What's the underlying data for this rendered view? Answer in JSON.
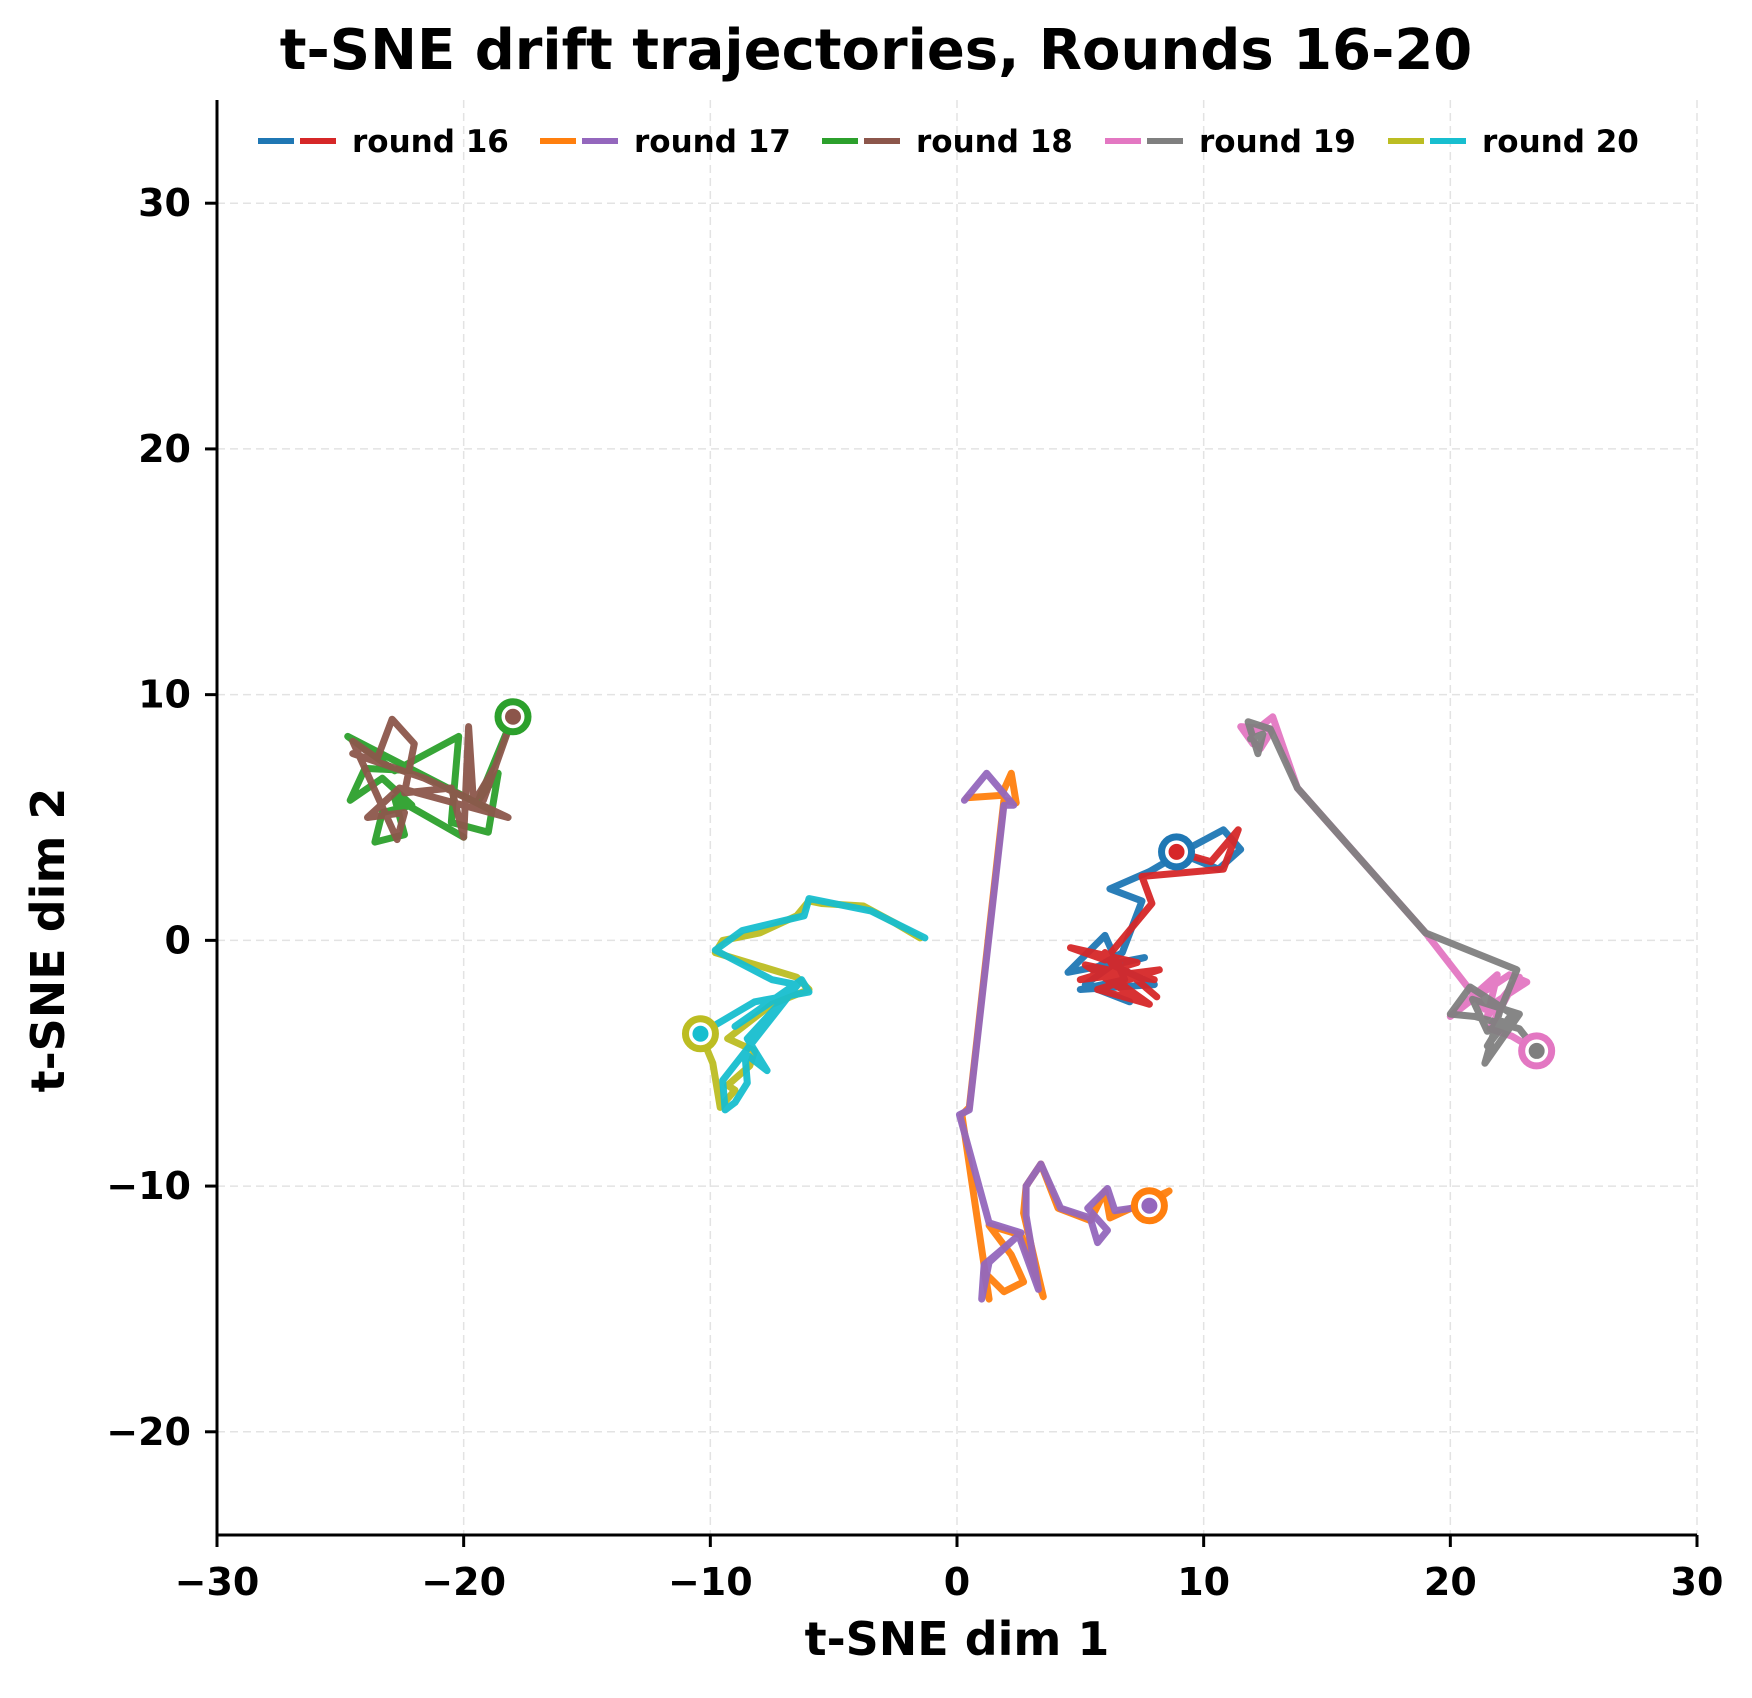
{
  "chart_data": {
    "type": "line",
    "title": "t-SNE drift trajectories, Rounds 16-20",
    "xlabel": "t-SNE dim 1",
    "ylabel": "t-SNE dim 2",
    "xlim": [
      -30,
      30
    ],
    "ylim": [
      -24.2,
      34.2
    ],
    "xticks": [
      -30,
      -20,
      -10,
      0,
      10,
      20,
      30
    ],
    "yticks": [
      -20,
      -10,
      0,
      10,
      20,
      30
    ],
    "xtick_labels": [
      "−30",
      "−20",
      "−10",
      "0",
      "10",
      "20",
      "30"
    ],
    "ytick_labels": [
      "−20",
      "−10",
      "0",
      "10",
      "20",
      "30"
    ],
    "grid": true,
    "legend_position": "upper center",
    "legend": [
      {
        "label": "round 16",
        "colors": [
          "#1f77b4",
          "#d62728"
        ]
      },
      {
        "label": "round 17",
        "colors": [
          "#ff7f0e",
          "#9467bd"
        ]
      },
      {
        "label": "round 18",
        "colors": [
          "#2ca02c",
          "#8c564b"
        ]
      },
      {
        "label": "round 19",
        "colors": [
          "#e377c2",
          "#7f7f7f"
        ]
      },
      {
        "label": "round 20",
        "colors": [
          "#bcbd22",
          "#17becf"
        ]
      }
    ],
    "series": [
      {
        "name": "round 16 A",
        "round": 16,
        "color": "#1f77b4",
        "start_marker": true,
        "points": [
          [
            8.9,
            3.6
          ],
          [
            10.6,
            2.9
          ],
          [
            11.5,
            3.7
          ],
          [
            10.8,
            4.5
          ],
          [
            9.5,
            3.8
          ],
          [
            7.8,
            2.8
          ],
          [
            6.2,
            2.1
          ],
          [
            7.5,
            1.6
          ],
          [
            6.7,
            -0.5
          ],
          [
            5.5,
            -1.2
          ],
          [
            7.6,
            -0.7
          ],
          [
            4.5,
            -1.3
          ],
          [
            6.0,
            0.2
          ],
          [
            6.8,
            -1.6
          ],
          [
            5.0,
            -2.0
          ],
          [
            8.0,
            -1.8
          ],
          [
            6.3,
            -1.0
          ],
          [
            5.2,
            -1.8
          ],
          [
            7.0,
            -2.5
          ]
        ]
      },
      {
        "name": "round 16 B",
        "round": 16,
        "color": "#d62728",
        "start_marker": false,
        "points": [
          [
            8.9,
            3.6
          ],
          [
            10.3,
            3.2
          ],
          [
            11.4,
            4.5
          ],
          [
            10.8,
            2.9
          ],
          [
            7.5,
            2.6
          ],
          [
            7.9,
            1.5
          ],
          [
            6.0,
            -0.8
          ],
          [
            4.6,
            -0.3
          ],
          [
            7.3,
            -0.9
          ],
          [
            5.0,
            -1.6
          ],
          [
            8.2,
            -1.2
          ],
          [
            5.7,
            -2.0
          ],
          [
            7.8,
            -2.6
          ],
          [
            6.0,
            -1.3
          ],
          [
            8.0,
            -1.6
          ],
          [
            5.2,
            -1.0
          ],
          [
            7.0,
            -2.2
          ],
          [
            6.0,
            -0.5
          ],
          [
            8.1,
            -2.3
          ]
        ]
      },
      {
        "name": "round 17 A",
        "round": 17,
        "color": "#ff7f0e",
        "start_marker": true,
        "points": [
          [
            7.8,
            -10.8
          ],
          [
            8.6,
            -10.2
          ],
          [
            6.2,
            -11.3
          ],
          [
            6.0,
            -10.2
          ],
          [
            5.4,
            -11.4
          ],
          [
            4.1,
            -10.9
          ],
          [
            3.4,
            -9.1
          ],
          [
            2.8,
            -10.0
          ],
          [
            2.7,
            -11.1
          ],
          [
            3.5,
            -14.5
          ],
          [
            2.6,
            -12.0
          ],
          [
            1.3,
            -11.6
          ],
          [
            2.2,
            -12.8
          ],
          [
            2.7,
            -13.9
          ],
          [
            1.9,
            -14.3
          ],
          [
            1.1,
            -13.5
          ],
          [
            1.3,
            -14.6
          ],
          [
            0.2,
            -7.1
          ],
          [
            0.5,
            -6.8
          ],
          [
            1.9,
            5.7
          ],
          [
            2.4,
            5.6
          ],
          [
            2.2,
            6.8
          ],
          [
            1.8,
            5.9
          ],
          [
            0.4,
            5.8
          ]
        ]
      },
      {
        "name": "round 17 B",
        "round": 17,
        "color": "#9467bd",
        "start_marker": false,
        "points": [
          [
            7.8,
            -10.8
          ],
          [
            6.4,
            -11.0
          ],
          [
            6.1,
            -10.1
          ],
          [
            5.3,
            -10.9
          ],
          [
            6.1,
            -11.8
          ],
          [
            5.7,
            -12.3
          ],
          [
            5.4,
            -11.3
          ],
          [
            4.2,
            -10.9
          ],
          [
            3.4,
            -9.1
          ],
          [
            2.8,
            -10.0
          ],
          [
            2.8,
            -11.2
          ],
          [
            3.3,
            -14.2
          ],
          [
            2.5,
            -12.0
          ],
          [
            1.8,
            -12.6
          ],
          [
            1.1,
            -13.2
          ],
          [
            1.0,
            -14.6
          ],
          [
            1.3,
            -13.1
          ],
          [
            2.6,
            -11.9
          ],
          [
            1.3,
            -11.5
          ],
          [
            0.1,
            -7.1
          ],
          [
            0.5,
            -6.9
          ],
          [
            1.9,
            5.5
          ],
          [
            2.3,
            5.5
          ],
          [
            1.2,
            6.8
          ],
          [
            0.3,
            5.7
          ]
        ]
      },
      {
        "name": "round 18 A",
        "round": 18,
        "color": "#2ca02c",
        "start_marker": true,
        "points": [
          [
            -18.0,
            9.1
          ],
          [
            -19.4,
            5.7
          ],
          [
            -18.6,
            6.8
          ],
          [
            -19.0,
            4.4
          ],
          [
            -20.5,
            4.8
          ],
          [
            -20.2,
            8.3
          ],
          [
            -22.8,
            6.9
          ],
          [
            -24.7,
            8.3
          ],
          [
            -18.9,
            5.3
          ],
          [
            -22.0,
            6.9
          ],
          [
            -24.0,
            7.0
          ],
          [
            -24.6,
            5.7
          ],
          [
            -23.3,
            6.6
          ],
          [
            -22.1,
            5.5
          ],
          [
            -23.3,
            5.2
          ],
          [
            -23.6,
            4.0
          ],
          [
            -22.4,
            4.3
          ],
          [
            -22.8,
            5.8
          ],
          [
            -20.0,
            4.2
          ]
        ]
      },
      {
        "name": "round 18 B",
        "round": 18,
        "color": "#8c564b",
        "start_marker": false,
        "points": [
          [
            -18.0,
            9.1
          ],
          [
            -19.2,
            5.7
          ],
          [
            -18.7,
            7.1
          ],
          [
            -19.6,
            5.6
          ],
          [
            -19.8,
            8.7
          ],
          [
            -20.0,
            4.2
          ],
          [
            -20.5,
            6.2
          ],
          [
            -22.4,
            6.0
          ],
          [
            -22.0,
            8.0
          ],
          [
            -22.9,
            9.0
          ],
          [
            -23.5,
            7.4
          ],
          [
            -24.5,
            8.1
          ],
          [
            -22.7,
            4.1
          ],
          [
            -22.4,
            5.2
          ],
          [
            -23.9,
            5.0
          ],
          [
            -22.6,
            6.2
          ],
          [
            -18.2,
            5.0
          ],
          [
            -21.6,
            6.6
          ],
          [
            -24.5,
            7.6
          ]
        ]
      },
      {
        "name": "round 19 A",
        "round": 19,
        "color": "#e377c2",
        "start_marker": true,
        "points": [
          [
            23.5,
            -4.5
          ],
          [
            22.5,
            -3.9
          ],
          [
            21.6,
            -3.6
          ],
          [
            22.5,
            -1.9
          ],
          [
            22.8,
            -1.5
          ],
          [
            21.5,
            -3.1
          ],
          [
            21.9,
            -1.4
          ],
          [
            21.0,
            -2.2
          ],
          [
            20.0,
            -3.1
          ],
          [
            20.9,
            -2.4
          ],
          [
            22.4,
            -1.4
          ],
          [
            23.1,
            -1.7
          ],
          [
            21.4,
            -2.8
          ],
          [
            19.0,
            0.3
          ],
          [
            13.8,
            6.2
          ],
          [
            12.8,
            9.1
          ],
          [
            11.8,
            8.3
          ],
          [
            12.3,
            7.8
          ],
          [
            12.8,
            8.6
          ],
          [
            11.5,
            8.7
          ],
          [
            12.0,
            8.0
          ]
        ]
      },
      {
        "name": "round 19 B",
        "round": 19,
        "color": "#7f7f7f",
        "start_marker": false,
        "points": [
          [
            23.5,
            -4.5
          ],
          [
            22.8,
            -3.6
          ],
          [
            21.0,
            -3.1
          ],
          [
            20.0,
            -3.0
          ],
          [
            20.8,
            -1.9
          ],
          [
            22.5,
            -3.0
          ],
          [
            21.5,
            -4.3
          ],
          [
            22.1,
            -3.3
          ],
          [
            21.5,
            -3.7
          ],
          [
            20.9,
            -2.4
          ],
          [
            22.8,
            -3.0
          ],
          [
            21.4,
            -5.0
          ],
          [
            22.0,
            -2.9
          ],
          [
            22.7,
            -1.2
          ],
          [
            19.0,
            0.3
          ],
          [
            13.8,
            6.2
          ],
          [
            12.7,
            8.6
          ],
          [
            11.8,
            8.9
          ],
          [
            12.2,
            7.6
          ],
          [
            12.4,
            8.4
          ],
          [
            11.9,
            8.2
          ]
        ]
      },
      {
        "name": "round 20 A",
        "round": 20,
        "color": "#bcbd22",
        "start_marker": true,
        "points": [
          [
            -10.4,
            -3.8
          ],
          [
            -9.9,
            -5.0
          ],
          [
            -9.6,
            -6.8
          ],
          [
            -9.0,
            -6.1
          ],
          [
            -9.3,
            -5.9
          ],
          [
            -8.4,
            -5.1
          ],
          [
            -8.2,
            -4.5
          ],
          [
            -9.3,
            -4.0
          ],
          [
            -7.5,
            -2.6
          ],
          [
            -6.0,
            -2.0
          ],
          [
            -6.5,
            -1.5
          ],
          [
            -9.8,
            -0.5
          ],
          [
            -9.5,
            0.0
          ],
          [
            -8.0,
            0.3
          ],
          [
            -6.5,
            1.0
          ],
          [
            -6.0,
            1.6
          ],
          [
            -5.5,
            1.5
          ],
          [
            -3.8,
            1.4
          ],
          [
            -2.5,
            0.7
          ],
          [
            -1.5,
            0.1
          ]
        ]
      },
      {
        "name": "round 20 B",
        "round": 20,
        "color": "#17becf",
        "start_marker": false,
        "points": [
          [
            -10.4,
            -3.8
          ],
          [
            -8.2,
            -2.5
          ],
          [
            -6.0,
            -2.1
          ],
          [
            -6.3,
            -1.6
          ],
          [
            -8.5,
            -4.0
          ],
          [
            -7.7,
            -5.3
          ],
          [
            -8.6,
            -4.6
          ],
          [
            -8.5,
            -5.8
          ],
          [
            -9.0,
            -6.6
          ],
          [
            -9.4,
            -6.9
          ],
          [
            -9.5,
            -5.7
          ],
          [
            -6.3,
            -1.6
          ],
          [
            -9.0,
            -3.5
          ],
          [
            -6.5,
            -1.8
          ],
          [
            -7.5,
            -1.6
          ],
          [
            -9.8,
            -0.4
          ],
          [
            -8.7,
            0.4
          ],
          [
            -6.2,
            1.0
          ],
          [
            -6.0,
            1.7
          ],
          [
            -3.5,
            1.2
          ],
          [
            -1.3,
            0.1
          ]
        ]
      }
    ]
  }
}
